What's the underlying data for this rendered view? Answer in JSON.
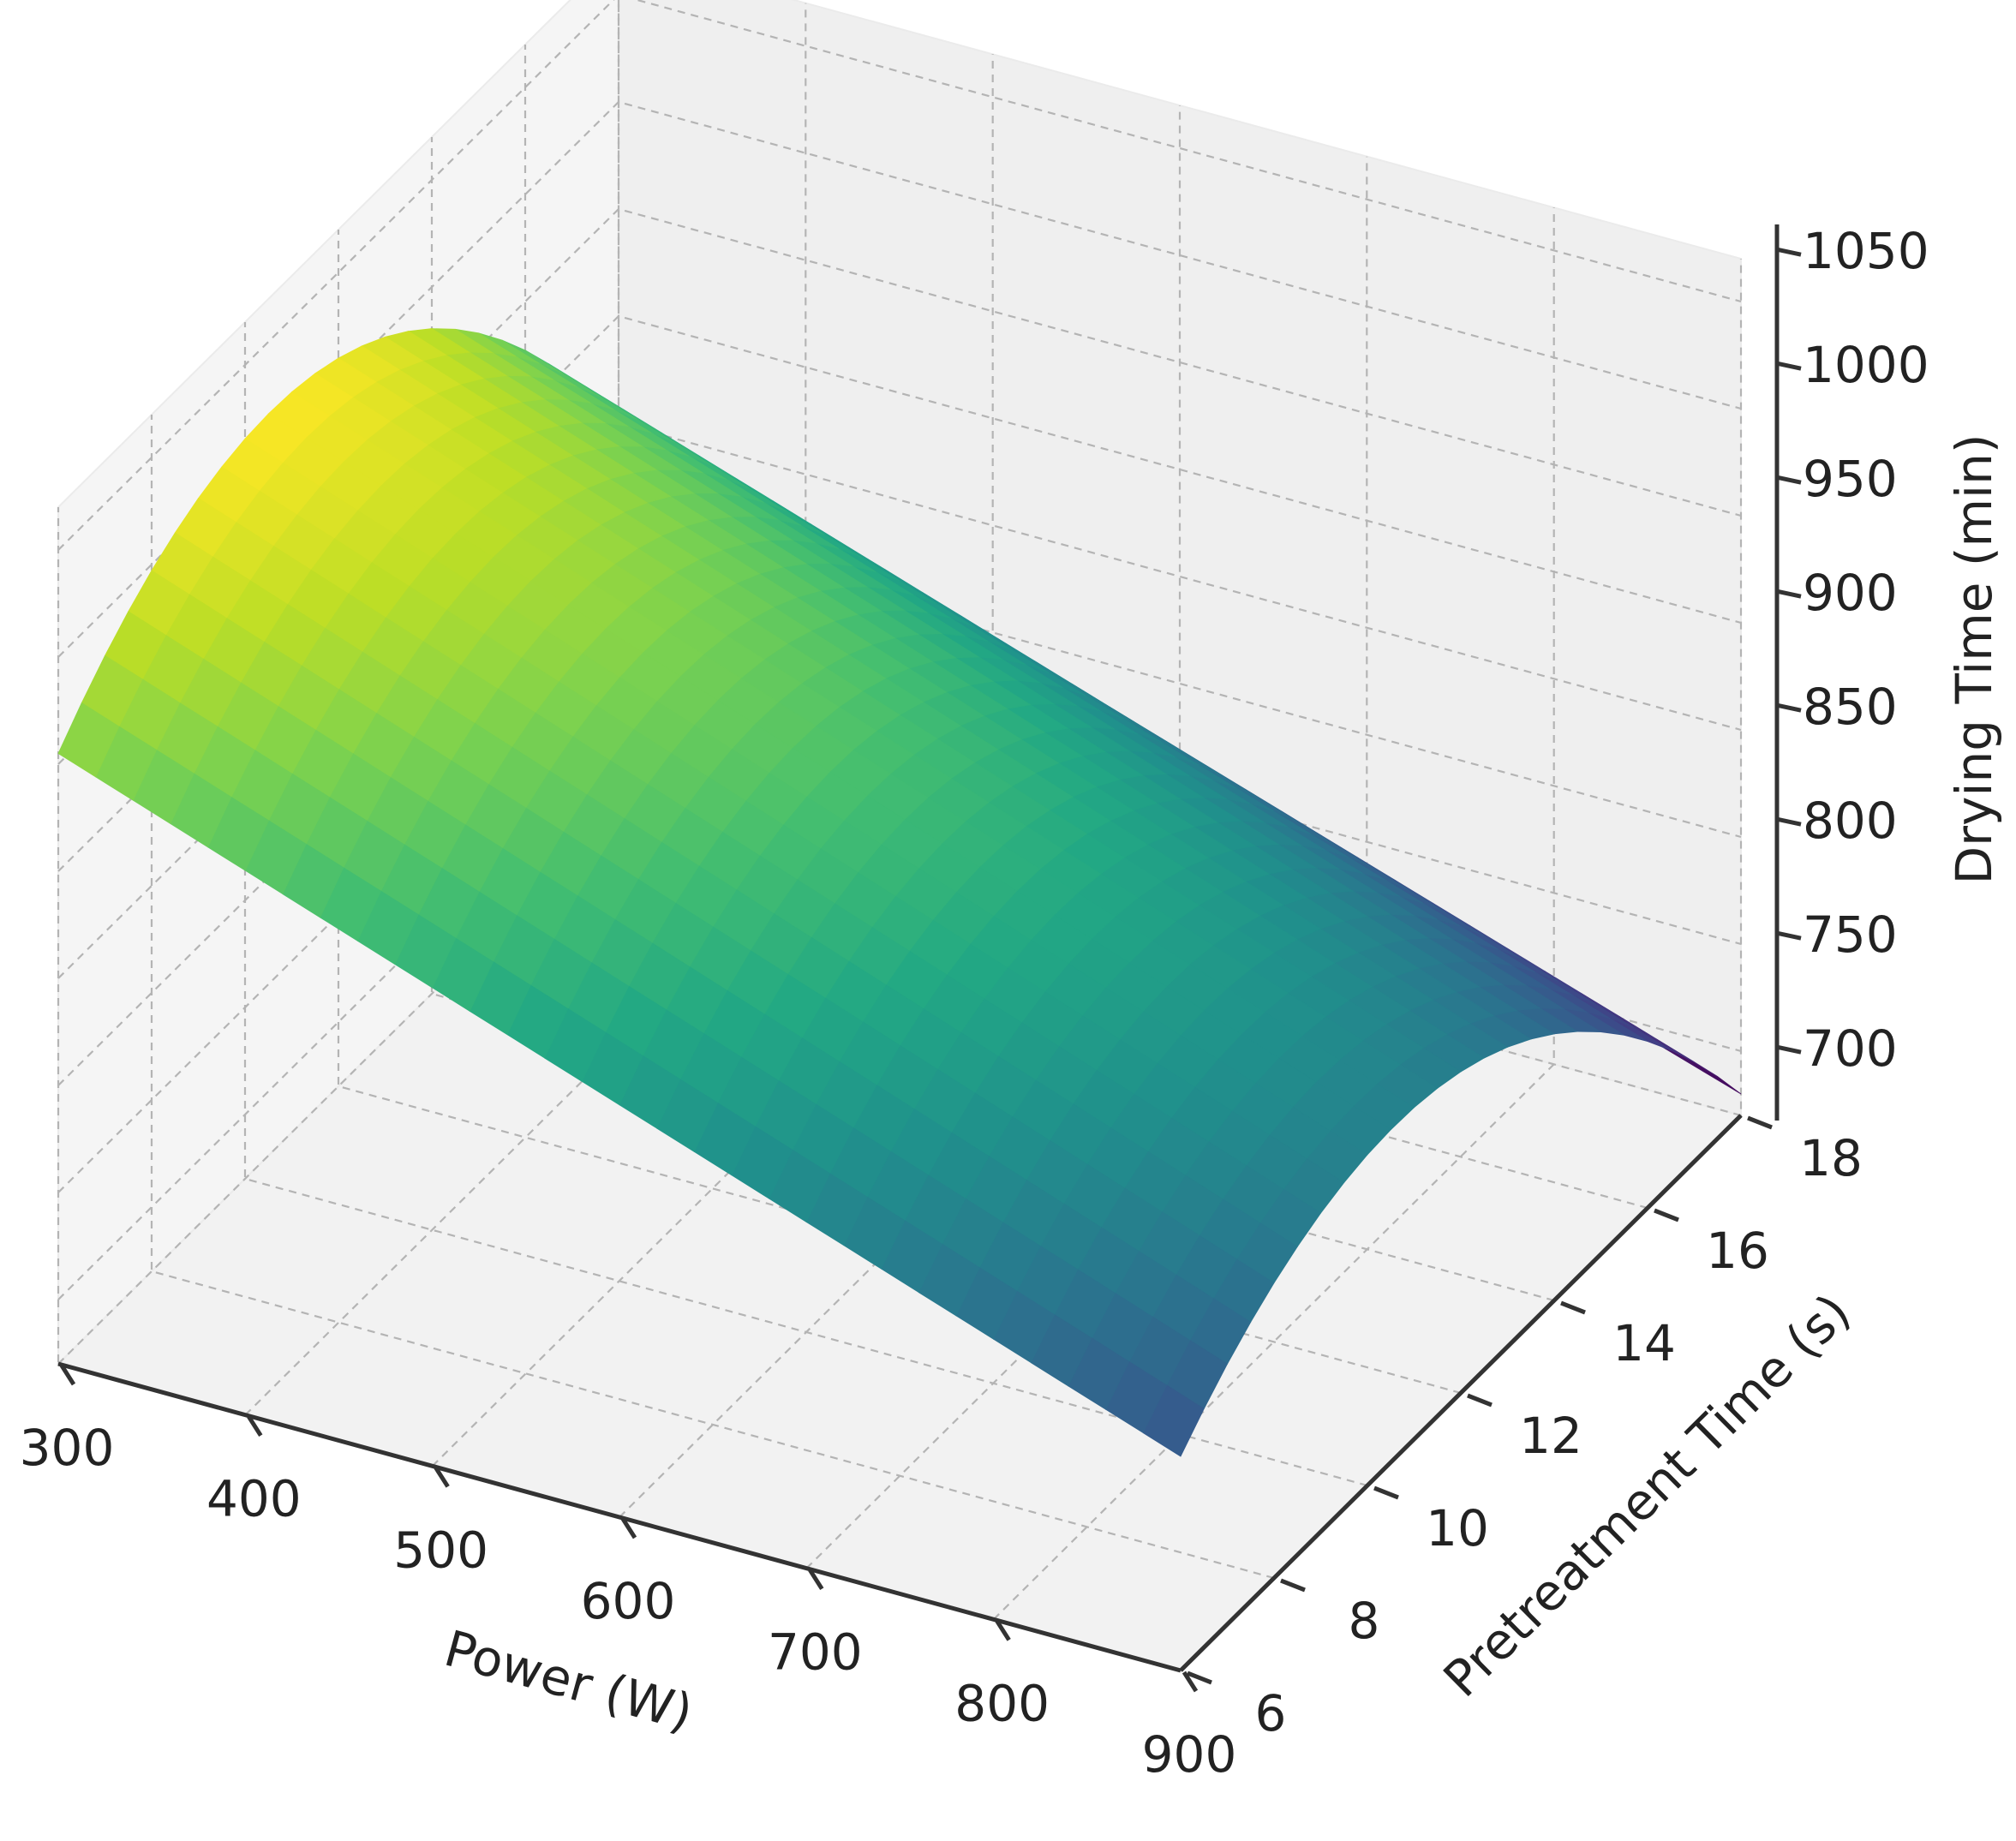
{
  "chart_data": {
    "type": "surface",
    "colormap": "viridis",
    "x_axis": {
      "label": "Power (W)",
      "ticks": [
        300,
        400,
        500,
        600,
        700,
        800,
        900
      ],
      "range": [
        300,
        900
      ]
    },
    "y_axis": {
      "label": "Pretreatment Time (s)",
      "ticks": [
        6,
        8,
        10,
        12,
        14,
        16,
        18
      ],
      "range": [
        6,
        18
      ]
    },
    "z_axis": {
      "label": "Drying Time (min)",
      "ticks": [
        700,
        750,
        800,
        850,
        900,
        950,
        1000,
        1050
      ],
      "range": [
        670,
        1070
      ]
    },
    "grid": true,
    "surface_corners": [
      {
        "power": 300,
        "pretreatment": 6,
        "drying_time": 955
      },
      {
        "power": 300,
        "pretreatment": 18,
        "drying_time": 850
      },
      {
        "power": 900,
        "pretreatment": 6,
        "drying_time": 770
      },
      {
        "power": 900,
        "pretreatment": 18,
        "drying_time": 680
      }
    ],
    "surface_peak": {
      "pretreatment": 12,
      "drying_time_at_300W": 1010,
      "drying_time_at_900W": 820
    }
  }
}
